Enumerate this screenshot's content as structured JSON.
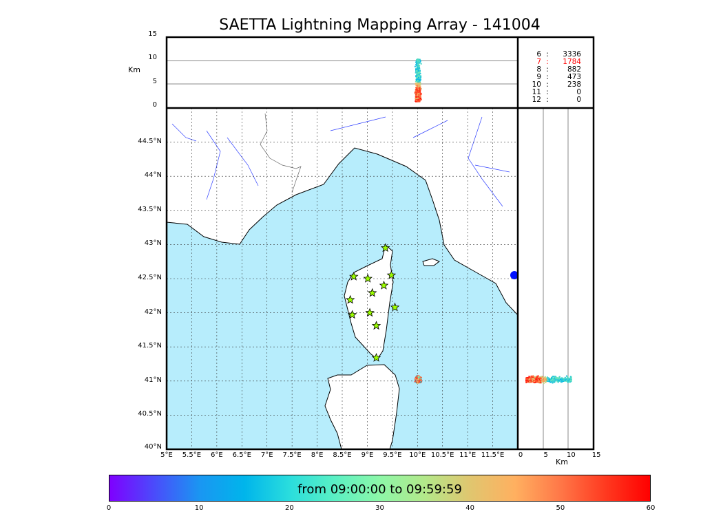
{
  "chart_data": {
    "type": "scatter",
    "title": "SAETTA Lightning Mapping Array - 141004",
    "map": {
      "lon_range": [
        5,
        12
      ],
      "lat_range": [
        40,
        45
      ],
      "lon_ticks": [
        "5°E",
        "5.5°E",
        "6°E",
        "6.5°E",
        "7°E",
        "7.5°E",
        "8°E",
        "8.5°E",
        "9°E",
        "9.5°E",
        "10°E",
        "10.5°E",
        "11°E",
        "11.5°E"
      ],
      "lat_ticks": [
        "40°N",
        "40.5°N",
        "41°N",
        "41.5°N",
        "42°N",
        "42.5°N",
        "43°N",
        "43.5°N",
        "44°N",
        "44.5°N"
      ],
      "grid": true
    },
    "altitude_panel_top": {
      "ylabel": "Km",
      "yrange": [
        0,
        15
      ],
      "ticks": [
        "0",
        "5",
        "10",
        "15"
      ]
    },
    "altitude_panel_right": {
      "xlabel": "Km",
      "xrange": [
        0,
        15
      ],
      "ticks": [
        "0",
        "5",
        "10",
        "15"
      ]
    },
    "stations": [
      [
        8.73,
        42.53
      ],
      [
        9.01,
        42.5
      ],
      [
        9.36,
        42.95
      ],
      [
        9.48,
        42.55
      ],
      [
        9.33,
        42.4
      ],
      [
        9.1,
        42.29
      ],
      [
        8.66,
        42.19
      ],
      [
        8.7,
        41.97
      ],
      [
        9.05,
        42.0
      ],
      [
        9.55,
        42.08
      ],
      [
        9.18,
        41.81
      ],
      [
        9.18,
        41.34
      ]
    ],
    "lightning_cluster": {
      "center_lon": 10.0,
      "center_lat": 41.03,
      "altitude_km_range": [
        1,
        12
      ],
      "time_range_min": [
        0,
        60
      ]
    },
    "station_counts": [
      {
        "n": "6",
        "count": "3336"
      },
      {
        "n": "7",
        "count": "1784",
        "highlight": true
      },
      {
        "n": "8",
        "count": "882"
      },
      {
        "n": "9",
        "count": "473"
      },
      {
        "n": "10",
        "count": "238"
      },
      {
        "n": "11",
        "count": "0"
      },
      {
        "n": "12",
        "count": "0"
      }
    ],
    "colorbar": {
      "label": "from 09:00:00 to 09:59:59",
      "ticks": [
        "0",
        "10",
        "20",
        "30",
        "40",
        "50",
        "60"
      ],
      "range": [
        0,
        60
      ]
    }
  },
  "colors": {
    "sea": "#b7edfc",
    "highlight": "#ff0000"
  }
}
